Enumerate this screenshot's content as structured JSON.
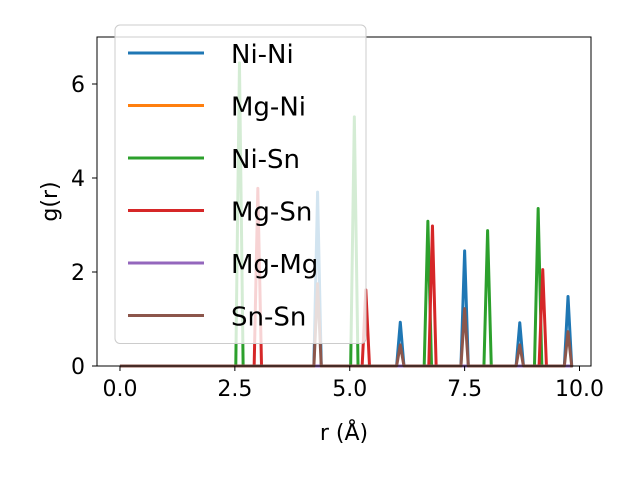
{
  "chart_data": {
    "type": "line",
    "xlabel": "r (Å)",
    "ylabel": "g(r)",
    "xlim": [
      -0.5,
      10.25
    ],
    "ylim": [
      0,
      7
    ],
    "xticks": [
      "0.0",
      "2.5",
      "5.0",
      "7.5",
      "10.0"
    ],
    "yticks": [
      "0",
      "2",
      "4",
      "6"
    ],
    "legend_position": "upper-left",
    "grid": false,
    "peak_half_width": 0.08,
    "x_range": [
      0,
      9.8
    ],
    "series": [
      {
        "name": "Ni-Ni",
        "color": "#1f77b4",
        "peaks": [
          [
            4.3,
            3.7
          ],
          [
            6.1,
            0.93
          ],
          [
            7.5,
            2.45
          ],
          [
            8.7,
            0.92
          ],
          [
            9.75,
            1.48
          ]
        ]
      },
      {
        "name": "Mg-Ni",
        "color": "#ff7f0e",
        "peaks": []
      },
      {
        "name": "Ni-Sn",
        "color": "#2ca02c",
        "peaks": [
          [
            2.6,
            6.45
          ],
          [
            5.1,
            5.3
          ],
          [
            6.7,
            3.08
          ],
          [
            8.0,
            2.88
          ],
          [
            9.1,
            3.35
          ]
        ]
      },
      {
        "name": "Mg-Sn",
        "color": "#d62728",
        "peaks": [
          [
            3.0,
            3.78
          ],
          [
            5.35,
            1.62
          ],
          [
            6.8,
            2.98
          ],
          [
            9.2,
            2.05
          ]
        ]
      },
      {
        "name": "Mg-Mg",
        "color": "#9467bd",
        "peaks": []
      },
      {
        "name": "Sn-Sn",
        "color": "#8c564b",
        "peaks": [
          [
            4.3,
            1.75
          ],
          [
            6.1,
            0.45
          ],
          [
            7.5,
            1.22
          ],
          [
            8.7,
            0.45
          ],
          [
            9.75,
            0.73
          ]
        ]
      }
    ]
  }
}
